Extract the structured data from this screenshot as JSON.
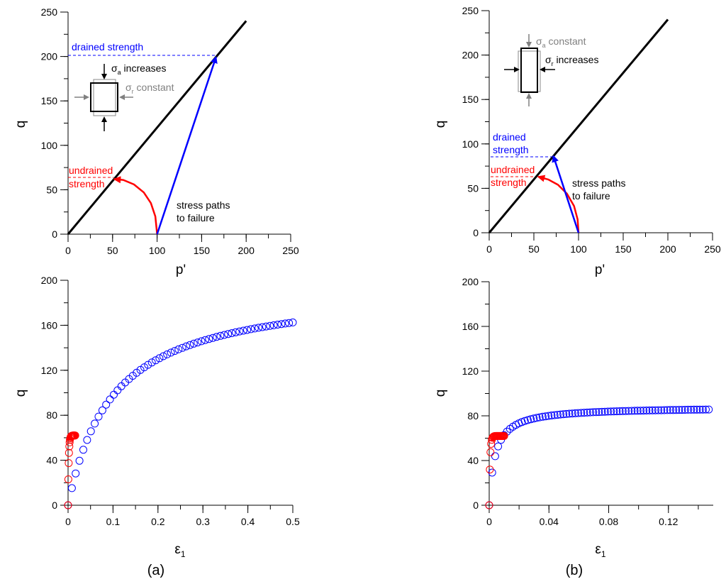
{
  "chart_data": [
    {
      "panel": "a-top",
      "type": "line",
      "xlabel": "p'",
      "ylabel": "q",
      "xlim": [
        0,
        250
      ],
      "ylim": [
        0,
        250
      ],
      "xticks": [
        0,
        50,
        100,
        150,
        200,
        250
      ],
      "yticks": [
        0,
        50,
        100,
        150,
        200,
        250
      ],
      "series": [
        {
          "role": "failure-line",
          "color": "#000000",
          "x": [
            0,
            200
          ],
          "y": [
            0,
            240
          ]
        },
        {
          "role": "undrained-path",
          "color": "#ff0000",
          "x": [
            100,
            98,
            93,
            85,
            74,
            62,
            52
          ],
          "y": [
            0,
            20,
            35,
            47,
            56,
            61,
            62
          ]
        },
        {
          "role": "drained-path",
          "color": "#0000ff",
          "x": [
            100,
            166
          ],
          "y": [
            0,
            199
          ]
        }
      ],
      "annotations": {
        "drained": "drained strength",
        "undrained_1": "undrained",
        "undrained_2": "strength",
        "paths_1": "stress paths",
        "paths_2": "to failure",
        "sigma_a": "σ",
        "sigma_a_sub": "a",
        "sigma_a_text": " increases",
        "sigma_r": "σ",
        "sigma_r_sub": "r",
        "sigma_r_text": " constant"
      },
      "drained_strength_q": 199,
      "undrained_strength_q": 62
    },
    {
      "panel": "b-top",
      "type": "line",
      "xlabel": "p'",
      "ylabel": "q",
      "xlim": [
        0,
        250
      ],
      "ylim": [
        0,
        250
      ],
      "xticks": [
        0,
        50,
        100,
        150,
        200,
        250
      ],
      "yticks": [
        0,
        50,
        100,
        150,
        200,
        250
      ],
      "series": [
        {
          "role": "failure-line",
          "color": "#000000",
          "x": [
            0,
            200
          ],
          "y": [
            0,
            240
          ]
        },
        {
          "role": "undrained-path",
          "color": "#ff0000",
          "x": [
            100,
            99,
            95,
            87,
            77,
            66,
            55
          ],
          "y": [
            0,
            15,
            30,
            44,
            54,
            60,
            63
          ]
        },
        {
          "role": "drained-path",
          "color": "#0000ff",
          "x": [
            100,
            72
          ],
          "y": [
            0,
            86
          ]
        }
      ],
      "annotations": {
        "drained_1": "drained",
        "drained_2": "strength",
        "undrained_1": "undrained",
        "undrained_2": "strength",
        "paths_1": "stress paths",
        "paths_2": "to failure",
        "sigma_a": "σ",
        "sigma_a_sub": "a",
        "sigma_a_text": " constant",
        "sigma_r": "σ",
        "sigma_r_sub": "r",
        "sigma_r_text": " increases"
      },
      "drained_strength_q": 85,
      "undrained_strength_q": 63
    },
    {
      "panel": "a-bottom",
      "type": "scatter",
      "xlabel": "ε",
      "xlabel_sub": "1",
      "ylabel": "q",
      "xlim": [
        0,
        0.5
      ],
      "ylim": [
        0,
        200
      ],
      "xticks": [
        "0",
        "0.1",
        "0.2",
        "0.3",
        "0.4",
        "0.5"
      ],
      "yticks": [
        0,
        40,
        80,
        120,
        160,
        200
      ],
      "series": [
        {
          "role": "drained",
          "color": "#0000ff",
          "model": {
            "type": "hyperbolic",
            "qmax": 195,
            "strain_scale": 0.1,
            "eps_max": 0.5,
            "count": 60
          }
        },
        {
          "role": "undrained",
          "color": "#ff0000",
          "model": {
            "type": "exponential",
            "qmax": 62,
            "strain_scale": 0.0015,
            "eps_max": 0.016,
            "count": 24
          }
        }
      ],
      "caption": "(a)"
    },
    {
      "panel": "b-bottom",
      "type": "scatter",
      "xlabel": "ε",
      "xlabel_sub": "1",
      "ylabel": "q",
      "xlim": [
        0,
        0.15
      ],
      "ylim": [
        0,
        200
      ],
      "xticks": [
        "0",
        "0.04",
        "0.08",
        "0.12"
      ],
      "xtick_values": [
        0,
        0.04,
        0.08,
        0.12
      ],
      "yticks": [
        0,
        40,
        80,
        120,
        160,
        200
      ],
      "series": [
        {
          "role": "drained",
          "color": "#0000ff",
          "model": {
            "type": "hyperbolic",
            "qmax": 88,
            "strain_scale": 0.004,
            "eps_max": 0.147,
            "count": 75
          }
        },
        {
          "role": "undrained",
          "color": "#ff0000",
          "model": {
            "type": "exponential",
            "qmax": 62,
            "strain_scale": 0.0006,
            "eps_max": 0.01,
            "count": 24
          }
        }
      ],
      "caption": "(b)"
    }
  ]
}
